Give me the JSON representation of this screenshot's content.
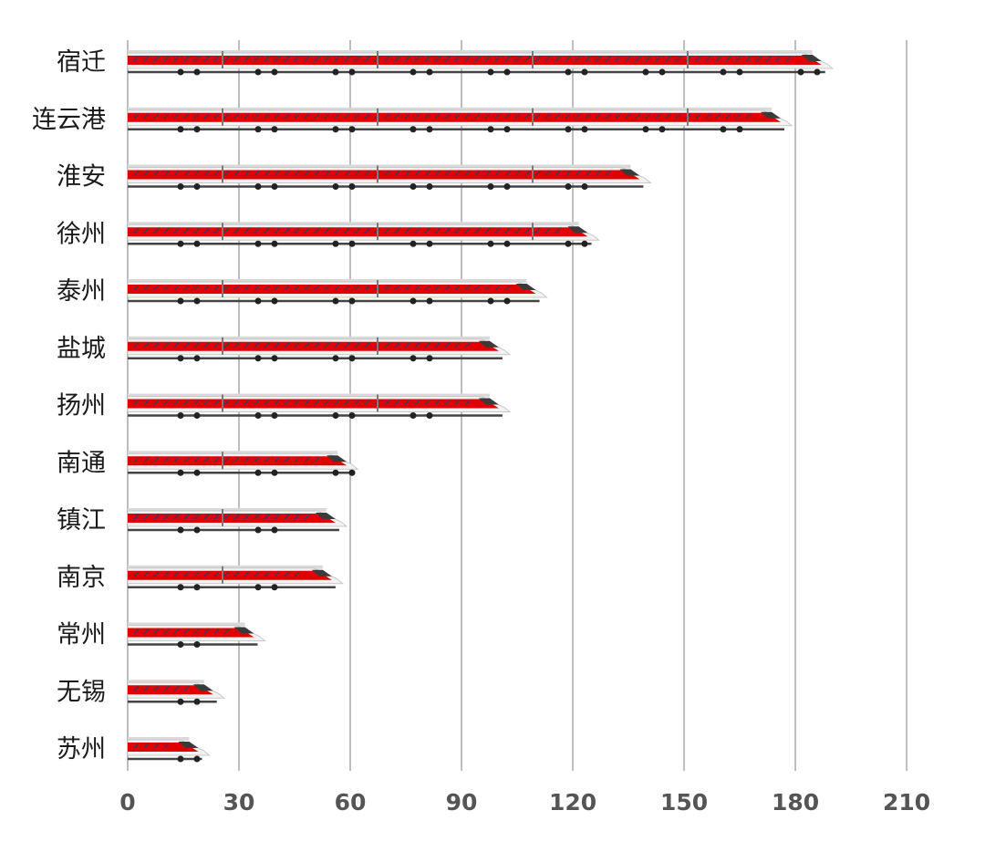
{
  "chart_data": {
    "type": "bar",
    "orientation": "horizontal",
    "title": "",
    "xlabel": "",
    "ylabel": "",
    "categories": [
      "宿迁",
      "连云港",
      "淮安",
      "徐州",
      "泰州",
      "盐城",
      "扬州",
      "南通",
      "镇江",
      "南京",
      "常州",
      "无锡",
      "苏州"
    ],
    "values": [
      190,
      179,
      141,
      127,
      113,
      103,
      103,
      62,
      59,
      58,
      37,
      26,
      22
    ],
    "xlim": [
      0,
      210
    ],
    "xticks": [
      "0",
      "30",
      "60",
      "90",
      "120",
      "150",
      "180",
      "210"
    ],
    "grid": true,
    "legend": "none",
    "bar_style": "high-speed-train",
    "colors": {
      "train_body": "#f2f2f2",
      "train_stripe": "#e10000",
      "window": "#2c3e66",
      "grid": "#bdbdbd",
      "axis_text": "#555555"
    }
  }
}
